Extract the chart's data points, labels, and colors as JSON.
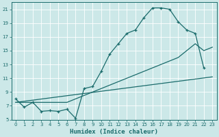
{
  "xlabel": "Humidex (Indice chaleur)",
  "bg_color": "#cce8e8",
  "grid_color": "#ffffff",
  "line_color": "#1a6b6b",
  "xlim": [
    -0.5,
    23.5
  ],
  "ylim": [
    5,
    22
  ],
  "xticks": [
    0,
    1,
    2,
    3,
    4,
    5,
    6,
    7,
    8,
    9,
    10,
    11,
    12,
    13,
    14,
    15,
    16,
    17,
    18,
    19,
    20,
    21,
    22,
    23
  ],
  "yticks": [
    5,
    7,
    9,
    11,
    13,
    15,
    17,
    19,
    21
  ],
  "line1_x": [
    0,
    1,
    2,
    3,
    4,
    5,
    6,
    7,
    8,
    9,
    10,
    11,
    12,
    13,
    14,
    15,
    16,
    17,
    18,
    19,
    20,
    21,
    22
  ],
  "line1_y": [
    8,
    6.8,
    7.5,
    6.2,
    6.3,
    6.2,
    6.5,
    5.2,
    9.5,
    9.8,
    12,
    14.5,
    16,
    17.5,
    18,
    19.8,
    21.2,
    21.2,
    21,
    19.2,
    18,
    17.5,
    12.5
  ],
  "line2_x": [
    0,
    1,
    2,
    3,
    4,
    5,
    6,
    7,
    8,
    9,
    10,
    11,
    12,
    13,
    14,
    15,
    16,
    17,
    18,
    19,
    20,
    21,
    22,
    23
  ],
  "line2_y": [
    7.5,
    7.5,
    7.5,
    7.5,
    7.5,
    7.5,
    7.5,
    8.0,
    8.5,
    9.0,
    9.5,
    10.0,
    10.5,
    11.0,
    11.5,
    12.0,
    12.5,
    13.0,
    13.5,
    14.0,
    15.0,
    16.0,
    15.0,
    15.5
  ],
  "line3_x": [
    0,
    23
  ],
  "line3_y": [
    7.5,
    11.2
  ]
}
